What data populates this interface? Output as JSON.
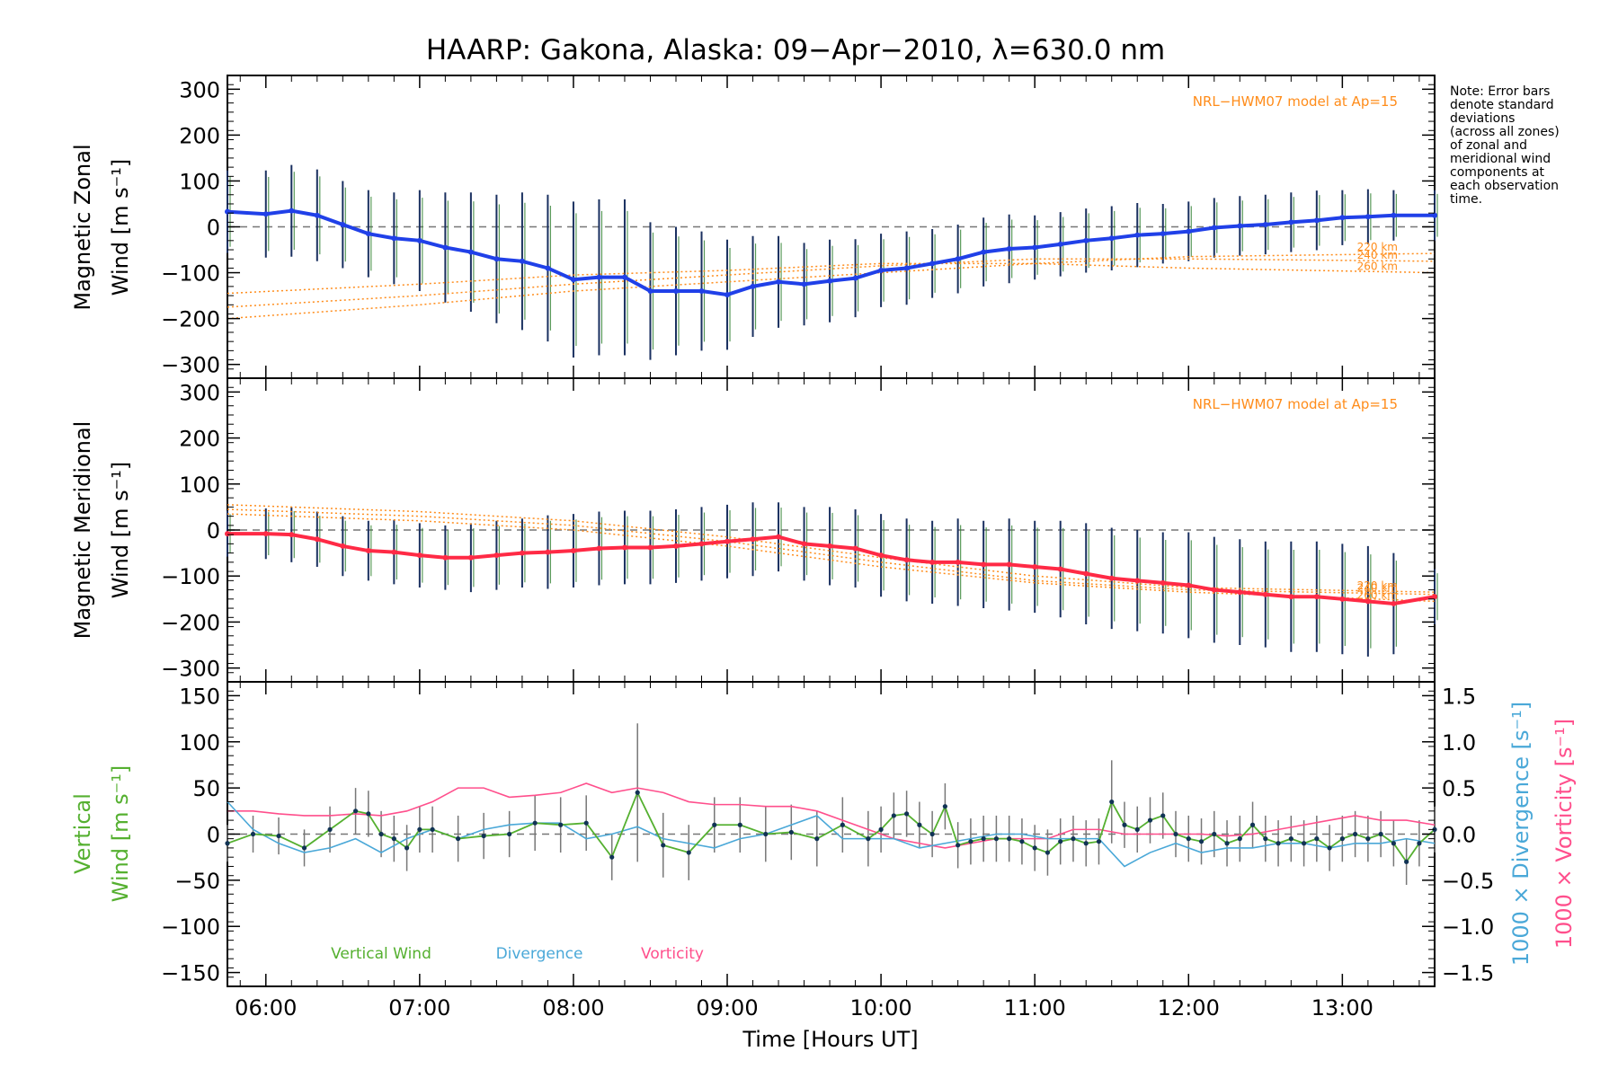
{
  "title": "HAARP: Gakona,  Alaska: 09−Apr−2010, λ=630.0 nm",
  "note": [
    "Note: Error bars",
    "denote standard",
    "deviations",
    "(across all zones)",
    "of zonal and",
    "meridional wind",
    "components at",
    "each observation",
    "time."
  ],
  "x_axis": {
    "label": "Time [Hours UT]",
    "tick_labels": [
      "06:00",
      "07:00",
      "08:00",
      "09:00",
      "10:00",
      "11:00",
      "12:00",
      "13:00"
    ]
  },
  "panels": {
    "zonal": {
      "ylabel_line1": "Magnetic Zonal",
      "ylabel_line2": "Wind [m s⁻¹]",
      "model_label": "NRL−HWM07 model at Ap=15",
      "alt_labels": [
        "220 km",
        "240 km",
        "260 km"
      ],
      "y_tick_labels": [
        "300",
        "200",
        "100",
        "0",
        "−100",
        "−200",
        "−300"
      ]
    },
    "meridional": {
      "ylabel_line1": "Magnetic Meridional",
      "ylabel_line2": "Wind [m s⁻¹]",
      "model_label": "NRL−HWM07 model at Ap=15",
      "alt_labels": [
        "220 km",
        "240 km",
        "260 km"
      ],
      "y_tick_labels": [
        "300",
        "200",
        "100",
        "0",
        "−100",
        "−200",
        "−300"
      ]
    },
    "vertical": {
      "ylabel_line1": "Vertical",
      "ylabel_line2": "Wind [m s⁻¹]",
      "right_label_div": "1000 × Divergence [s⁻¹]",
      "right_label_vort": "1000 × Vorticity [s⁻¹]",
      "y_tick_labels": [
        "150",
        "100",
        "50",
        "0",
        "−50",
        "−100",
        "−150"
      ],
      "right_tick_labels": [
        "1.5",
        "1.0",
        "0.5",
        "0.0",
        "−0.5",
        "−1.0",
        "−1.5"
      ],
      "legend": [
        "Vertical Wind",
        "Divergence",
        "Vorticity"
      ]
    }
  },
  "colors": {
    "zonal": "#2040e8",
    "meridional": "#ff2a45",
    "vertical": "#55b030",
    "divergence": "#4aa8d8",
    "vorticity": "#ff4f8c",
    "model": "#ff8c1a",
    "errorbar_dark": "#1a3060",
    "errorbar_green": "#2f8030"
  },
  "chart_data": [
    {
      "type": "line",
      "panel": "zonal",
      "xlim": [
        "05:45",
        "13:36"
      ],
      "ylim": [
        -330,
        330
      ],
      "series": [
        {
          "x": [
            "05:45",
            "06:00",
            "06:10",
            "06:20",
            "06:30",
            "06:40",
            "06:50",
            "07:00",
            "07:10",
            "07:20",
            "07:30",
            "07:40",
            "07:50",
            "08:00",
            "08:10",
            "08:20",
            "08:30",
            "08:40",
            "08:50",
            "09:00",
            "09:10",
            "09:20",
            "09:30",
            "09:40",
            "09:50",
            "10:00",
            "10:10",
            "10:20",
            "10:30",
            "10:40",
            "10:50",
            "11:00",
            "11:10",
            "11:20",
            "11:30",
            "11:40",
            "11:50",
            "12:00",
            "12:10",
            "12:20",
            "12:30",
            "12:40",
            "12:50",
            "13:00",
            "13:10",
            "13:20",
            "13:36"
          ],
          "y": [
            33,
            28,
            35,
            25,
            5,
            -15,
            -25,
            -30,
            -45,
            -55,
            -70,
            -75,
            -90,
            -115,
            -110,
            -110,
            -140,
            -140,
            -140,
            -148,
            -130,
            -120,
            -125,
            -118,
            -112,
            -95,
            -90,
            -80,
            -70,
            -55,
            -48,
            -45,
            -38,
            -30,
            -25,
            -18,
            -15,
            -10,
            -2,
            2,
            5,
            10,
            14,
            20,
            22,
            25,
            25
          ],
          "err": [
            90,
            95,
            100,
            100,
            95,
            95,
            100,
            110,
            120,
            130,
            140,
            150,
            160,
            170,
            170,
            170,
            150,
            140,
            130,
            120,
            110,
            100,
            90,
            90,
            85,
            80,
            80,
            75,
            75,
            75,
            75,
            70,
            70,
            70,
            70,
            70,
            65,
            65,
            65,
            65,
            65,
            65,
            65,
            60,
            60,
            55,
            55
          ]
        },
        {
          "x": [
            "05:45",
            "07:00",
            "08:00",
            "09:00",
            "10:00",
            "11:00",
            "12:00",
            "13:36"
          ],
          "y": [
            -200,
            -170,
            -140,
            -120,
            -100,
            -80,
            -65,
            -58
          ]
        },
        {
          "x": [
            "05:45",
            "07:00",
            "08:00",
            "09:00",
            "10:00",
            "11:00",
            "12:00",
            "13:36"
          ],
          "y": [
            -175,
            -150,
            -125,
            -105,
            -85,
            -70,
            -70,
            -75
          ]
        },
        {
          "x": [
            "05:45",
            "07:00",
            "08:00",
            "09:00",
            "10:00",
            "11:00",
            "12:00",
            "13:36"
          ],
          "y": [
            -145,
            -125,
            -105,
            -95,
            -80,
            -80,
            -90,
            -100
          ]
        }
      ]
    },
    {
      "type": "line",
      "panel": "meridional",
      "xlim": [
        "05:45",
        "13:36"
      ],
      "ylim": [
        -330,
        330
      ],
      "series": [
        {
          "x": [
            "05:45",
            "06:00",
            "06:10",
            "06:20",
            "06:30",
            "06:40",
            "06:50",
            "07:00",
            "07:10",
            "07:20",
            "07:30",
            "07:40",
            "07:50",
            "08:00",
            "08:10",
            "08:20",
            "08:30",
            "08:40",
            "08:50",
            "09:00",
            "09:10",
            "09:20",
            "09:30",
            "09:40",
            "09:50",
            "10:00",
            "10:10",
            "10:20",
            "10:30",
            "10:40",
            "10:50",
            "11:00",
            "11:10",
            "11:20",
            "11:30",
            "11:40",
            "11:50",
            "12:00",
            "12:10",
            "12:20",
            "12:30",
            "12:40",
            "12:50",
            "13:00",
            "13:10",
            "13:20",
            "13:36"
          ],
          "y": [
            -8,
            -8,
            -10,
            -20,
            -35,
            -45,
            -48,
            -55,
            -60,
            -60,
            -55,
            -50,
            -48,
            -45,
            -40,
            -38,
            -38,
            -35,
            -30,
            -25,
            -20,
            -15,
            -30,
            -35,
            -40,
            -55,
            -65,
            -70,
            -70,
            -75,
            -75,
            -80,
            -85,
            -95,
            -105,
            -110,
            -115,
            -120,
            -130,
            -135,
            -140,
            -145,
            -145,
            -150,
            -155,
            -160,
            -145
          ],
          "err": [
            50,
            55,
            60,
            60,
            65,
            65,
            70,
            70,
            70,
            75,
            75,
            75,
            80,
            80,
            80,
            80,
            80,
            80,
            80,
            80,
            80,
            75,
            80,
            85,
            85,
            90,
            90,
            90,
            95,
            95,
            100,
            100,
            105,
            110,
            110,
            110,
            110,
            115,
            115,
            115,
            115,
            120,
            120,
            120,
            120,
            110,
            60
          ]
        },
        {
          "x": [
            "05:45",
            "07:00",
            "08:00",
            "09:00",
            "10:00",
            "11:00",
            "12:00",
            "13:36"
          ],
          "y": [
            55,
            40,
            20,
            -15,
            -60,
            -100,
            -125,
            -135
          ]
        },
        {
          "x": [
            "05:45",
            "07:00",
            "08:00",
            "09:00",
            "10:00",
            "11:00",
            "12:00",
            "13:36"
          ],
          "y": [
            45,
            30,
            10,
            -25,
            -70,
            -110,
            -130,
            -140
          ]
        },
        {
          "x": [
            "05:45",
            "07:00",
            "08:00",
            "09:00",
            "10:00",
            "11:00",
            "12:00",
            "13:36"
          ],
          "y": [
            35,
            20,
            0,
            -35,
            -80,
            -115,
            -135,
            -155
          ]
        }
      ]
    },
    {
      "type": "line",
      "panel": "vertical",
      "xlim": [
        "05:45",
        "13:36"
      ],
      "ylim": [
        -165,
        165
      ],
      "y2lim": [
        -1.65,
        1.65
      ],
      "series": [
        {
          "name": "Vertical Wind",
          "x": [
            "05:45",
            "05:55",
            "06:05",
            "06:15",
            "06:25",
            "06:35",
            "06:40",
            "06:45",
            "06:50",
            "06:55",
            "07:00",
            "07:05",
            "07:15",
            "07:25",
            "07:35",
            "07:45",
            "07:55",
            "08:05",
            "08:15",
            "08:25",
            "08:35",
            "08:45",
            "08:55",
            "09:05",
            "09:15",
            "09:25",
            "09:35",
            "09:45",
            "09:55",
            "10:00",
            "10:05",
            "10:10",
            "10:15",
            "10:20",
            "10:25",
            "10:30",
            "10:35",
            "10:40",
            "10:45",
            "10:50",
            "10:55",
            "11:00",
            "11:05",
            "11:10",
            "11:15",
            "11:20",
            "11:25",
            "11:30",
            "11:35",
            "11:40",
            "11:45",
            "11:50",
            "11:55",
            "12:00",
            "12:05",
            "12:10",
            "12:15",
            "12:20",
            "12:25",
            "12:30",
            "12:35",
            "12:40",
            "12:45",
            "12:50",
            "12:55",
            "13:00",
            "13:05",
            "13:10",
            "13:15",
            "13:20",
            "13:25",
            "13:30",
            "13:36"
          ],
          "y": [
            -10,
            0,
            -2,
            -15,
            5,
            25,
            22,
            0,
            -5,
            -15,
            5,
            5,
            -5,
            -2,
            0,
            12,
            10,
            12,
            -25,
            45,
            -12,
            -20,
            10,
            10,
            0,
            2,
            -5,
            10,
            -5,
            5,
            20,
            22,
            10,
            0,
            30,
            -12,
            -8,
            -5,
            -5,
            -5,
            -8,
            -15,
            -20,
            -8,
            -5,
            -10,
            -8,
            35,
            10,
            5,
            15,
            20,
            0,
            -5,
            -8,
            0,
            -10,
            -5,
            10,
            -5,
            -10,
            -5,
            -10,
            -5,
            -15,
            -5,
            0,
            -5,
            0,
            -10,
            -30,
            -10,
            5
          ],
          "err": [
            20,
            20,
            20,
            20,
            25,
            25,
            25,
            25,
            25,
            25,
            25,
            25,
            25,
            25,
            25,
            30,
            30,
            30,
            25,
            75,
            35,
            30,
            30,
            30,
            30,
            30,
            30,
            30,
            30,
            25,
            25,
            25,
            25,
            25,
            25,
            25,
            25,
            25,
            25,
            25,
            25,
            25,
            25,
            25,
            25,
            25,
            25,
            45,
            25,
            25,
            25,
            25,
            25,
            25,
            25,
            25,
            25,
            25,
            25,
            25,
            25,
            25,
            25,
            25,
            25,
            25,
            25,
            25,
            25,
            25,
            25,
            25,
            25
          ]
        },
        {
          "name": "Divergence",
          "x": [
            "05:45",
            "05:55",
            "06:05",
            "06:15",
            "06:25",
            "06:35",
            "06:45",
            "06:55",
            "07:05",
            "07:15",
            "07:25",
            "07:35",
            "07:45",
            "07:55",
            "08:05",
            "08:15",
            "08:25",
            "08:35",
            "08:45",
            "08:55",
            "09:05",
            "09:15",
            "09:25",
            "09:35",
            "09:45",
            "09:55",
            "10:05",
            "10:15",
            "10:25",
            "10:35",
            "10:45",
            "10:55",
            "11:05",
            "11:15",
            "11:25",
            "11:35",
            "11:45",
            "11:55",
            "12:05",
            "12:15",
            "12:25",
            "12:35",
            "12:45",
            "12:55",
            "13:05",
            "13:15",
            "13:25",
            "13:36"
          ],
          "y": [
            0.35,
            0.05,
            -0.1,
            -0.2,
            -0.15,
            -0.05,
            -0.2,
            -0.05,
            0.05,
            -0.05,
            0.05,
            0.1,
            0.12,
            0.12,
            -0.05,
            0.0,
            0.08,
            -0.05,
            -0.1,
            -0.15,
            -0.05,
            0.0,
            0.1,
            0.2,
            -0.05,
            -0.05,
            -0.05,
            -0.15,
            -0.1,
            -0.05,
            0.0,
            0.0,
            -0.05,
            -0.05,
            -0.05,
            -0.35,
            -0.2,
            -0.1,
            -0.2,
            -0.15,
            -0.15,
            -0.1,
            -0.1,
            -0.15,
            -0.1,
            -0.1,
            -0.05,
            -0.1
          ]
        },
        {
          "name": "Vorticity",
          "x": [
            "05:45",
            "05:55",
            "06:05",
            "06:15",
            "06:25",
            "06:35",
            "06:45",
            "06:55",
            "07:05",
            "07:15",
            "07:25",
            "07:35",
            "07:45",
            "07:55",
            "08:05",
            "08:15",
            "08:25",
            "08:35",
            "08:45",
            "08:55",
            "09:05",
            "09:15",
            "09:25",
            "09:35",
            "09:45",
            "09:55",
            "10:05",
            "10:15",
            "10:25",
            "10:35",
            "10:45",
            "10:55",
            "11:05",
            "11:15",
            "11:25",
            "11:35",
            "11:45",
            "11:55",
            "12:05",
            "12:15",
            "12:25",
            "12:35",
            "12:45",
            "12:55",
            "13:05",
            "13:15",
            "13:25",
            "13:36"
          ],
          "y": [
            0.25,
            0.25,
            0.22,
            0.2,
            0.2,
            0.22,
            0.2,
            0.25,
            0.35,
            0.5,
            0.5,
            0.4,
            0.42,
            0.45,
            0.55,
            0.45,
            0.5,
            0.45,
            0.35,
            0.32,
            0.32,
            0.3,
            0.3,
            0.25,
            0.15,
            0.05,
            -0.05,
            -0.1,
            -0.15,
            -0.1,
            -0.05,
            -0.05,
            -0.05,
            0.05,
            0.05,
            0.0,
            0.0,
            0.0,
            0.0,
            -0.02,
            0.0,
            0.05,
            0.1,
            0.15,
            0.2,
            0.15,
            0.15,
            0.1
          ]
        }
      ]
    }
  ]
}
